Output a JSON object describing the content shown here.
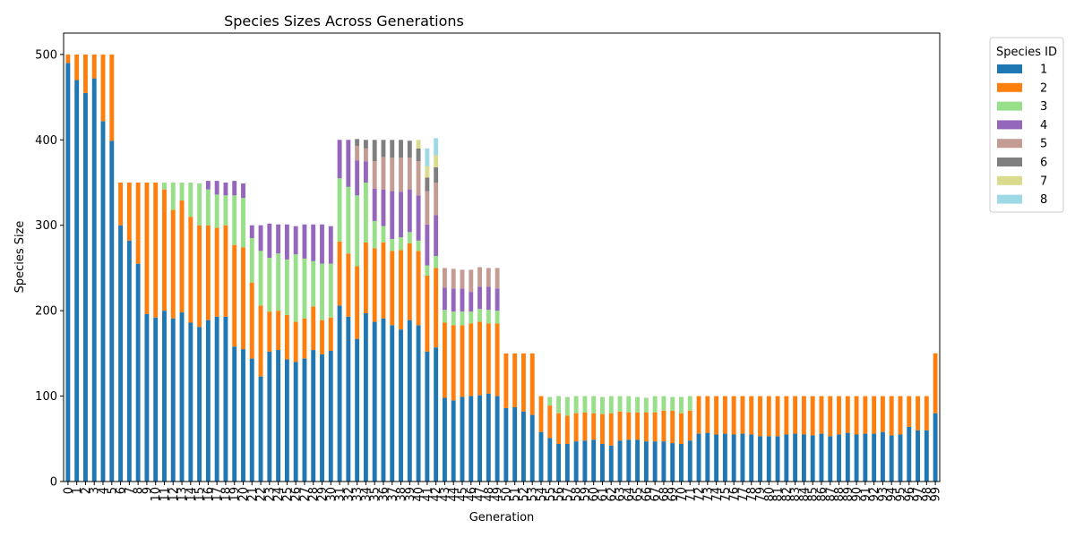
{
  "chart_data": {
    "type": "bar",
    "stacked": true,
    "title": "Species Sizes Across Generations",
    "xlabel": "Generation",
    "ylabel": "Species Size",
    "ylim": [
      0,
      525
    ],
    "yticks": [
      0,
      100,
      200,
      300,
      400,
      500
    ],
    "grid": false,
    "legend": {
      "title": "Species ID",
      "placement": "outside-top-right"
    },
    "categories": [
      "0",
      "1",
      "2",
      "3",
      "4",
      "5",
      "6",
      "7",
      "8",
      "9",
      "10",
      "11",
      "12",
      "13",
      "14",
      "15",
      "16",
      "17",
      "18",
      "19",
      "20",
      "21",
      "22",
      "23",
      "24",
      "25",
      "26",
      "27",
      "28",
      "29",
      "30",
      "31",
      "32",
      "33",
      "34",
      "35",
      "36",
      "37",
      "38",
      "39",
      "40",
      "41",
      "42",
      "43",
      "44",
      "45",
      "46",
      "47",
      "48",
      "49",
      "50",
      "51",
      "52",
      "53",
      "54",
      "55",
      "56",
      "57",
      "58",
      "59",
      "60",
      "61",
      "62",
      "63",
      "64",
      "65",
      "66",
      "67",
      "68",
      "69",
      "70",
      "71",
      "72",
      "73",
      "74",
      "75",
      "76",
      "77",
      "78",
      "79",
      "80",
      "81",
      "82",
      "83",
      "84",
      "85",
      "86",
      "87",
      "88",
      "89",
      "90",
      "91",
      "92",
      "93",
      "94",
      "95",
      "96",
      "97",
      "98",
      "99"
    ],
    "series": [
      {
        "name": "1",
        "color": "#1f77b4",
        "values": [
          490,
          470,
          455,
          472,
          422,
          399,
          300,
          282,
          255,
          196,
          192,
          200,
          191,
          198,
          186,
          181,
          189,
          193,
          193,
          158,
          155,
          144,
          123,
          152,
          154,
          143,
          140,
          144,
          154,
          149,
          153,
          206,
          193,
          167,
          197,
          187,
          191,
          183,
          178,
          189,
          183,
          152,
          157,
          98,
          95,
          99,
          100,
          101,
          103,
          100,
          86,
          87,
          82,
          78,
          58,
          51,
          44,
          44,
          47,
          48,
          49,
          44,
          42,
          48,
          49,
          49,
          47,
          47,
          47,
          45,
          44,
          48,
          56,
          57,
          55,
          56,
          55,
          56,
          55,
          53,
          53,
          53,
          55,
          56,
          55,
          54,
          56,
          53,
          55,
          57,
          55,
          56,
          56,
          58,
          54,
          55,
          64,
          60,
          60,
          80
        ]
      },
      {
        "name": "2",
        "color": "#ff7f0e",
        "values": [
          10,
          30,
          45,
          28,
          78,
          101,
          50,
          68,
          95,
          154,
          158,
          142,
          127,
          131,
          124,
          119,
          111,
          104,
          107,
          119,
          119,
          89,
          83,
          47,
          46,
          52,
          47,
          47,
          51,
          40,
          39,
          75,
          74,
          85,
          83,
          86,
          89,
          87,
          93,
          90,
          87,
          89,
          93,
          88,
          88,
          84,
          85,
          86,
          82,
          85,
          64,
          63,
          68,
          72,
          42,
          38,
          36,
          33,
          33,
          33,
          31,
          35,
          38,
          34,
          32,
          32,
          34,
          34,
          36,
          38,
          36,
          35,
          44,
          43,
          45,
          44,
          45,
          44,
          45,
          47,
          47,
          47,
          45,
          44,
          45,
          46,
          44,
          47,
          45,
          43,
          45,
          44,
          44,
          42,
          46,
          45,
          36,
          40,
          40,
          70
        ]
      },
      {
        "name": "3",
        "color": "#98df8a",
        "values": [
          0,
          0,
          0,
          0,
          0,
          0,
          0,
          0,
          0,
          0,
          0,
          8,
          32,
          21,
          40,
          49,
          42,
          39,
          35,
          58,
          58,
          52,
          64,
          63,
          67,
          65,
          79,
          70,
          53,
          66,
          63,
          74,
          78,
          83,
          70,
          32,
          19,
          14,
          15,
          13,
          12,
          12,
          14,
          15,
          16,
          16,
          14,
          15,
          16,
          15,
          0,
          0,
          0,
          0,
          0,
          10,
          20,
          22,
          20,
          19,
          20,
          20,
          20,
          18,
          19,
          18,
          17,
          19,
          17,
          16,
          19,
          17,
          0,
          0,
          0,
          0,
          0,
          0,
          0,
          0,
          0,
          0,
          0,
          0,
          0,
          0,
          0,
          0,
          0,
          0,
          0,
          0,
          0,
          0,
          0,
          0,
          0,
          0,
          0,
          0
        ]
      },
      {
        "name": "4",
        "color": "#9467bd",
        "values": [
          0,
          0,
          0,
          0,
          0,
          0,
          0,
          0,
          0,
          0,
          0,
          0,
          0,
          0,
          0,
          0,
          10,
          16,
          15,
          17,
          17,
          15,
          30,
          40,
          34,
          41,
          33,
          40,
          43,
          46,
          44,
          45,
          55,
          41,
          25,
          38,
          43,
          56,
          53,
          50,
          53,
          48,
          48,
          26,
          27,
          27,
          23,
          26,
          27,
          26,
          0,
          0,
          0,
          0,
          0,
          0,
          0,
          0,
          0,
          0,
          0,
          0,
          0,
          0,
          0,
          0,
          0,
          0,
          0,
          0,
          0,
          0,
          0,
          0,
          0,
          0,
          0,
          0,
          0,
          0,
          0,
          0,
          0,
          0,
          0,
          0,
          0,
          0,
          0,
          0,
          0,
          0,
          0,
          0,
          0,
          0,
          0,
          0,
          0,
          0
        ]
      },
      {
        "name": "5",
        "color": "#c49c94",
        "values": [
          0,
          0,
          0,
          0,
          0,
          0,
          0,
          0,
          0,
          0,
          0,
          0,
          0,
          0,
          0,
          0,
          0,
          0,
          0,
          0,
          0,
          0,
          0,
          0,
          0,
          0,
          0,
          0,
          0,
          0,
          0,
          0,
          0,
          17,
          15,
          32,
          38,
          39,
          40,
          37,
          40,
          39,
          38,
          23,
          23,
          22,
          26,
          23,
          22,
          24,
          0,
          0,
          0,
          0,
          0,
          0,
          0,
          0,
          0,
          0,
          0,
          0,
          0,
          0,
          0,
          0,
          0,
          0,
          0,
          0,
          0,
          0,
          0,
          0,
          0,
          0,
          0,
          0,
          0,
          0,
          0,
          0,
          0,
          0,
          0,
          0,
          0,
          0,
          0,
          0,
          0,
          0,
          0,
          0,
          0,
          0,
          0,
          0,
          0,
          0
        ]
      },
      {
        "name": "6",
        "color": "#7f7f7f",
        "values": [
          0,
          0,
          0,
          0,
          0,
          0,
          0,
          0,
          0,
          0,
          0,
          0,
          0,
          0,
          0,
          0,
          0,
          0,
          0,
          0,
          0,
          0,
          0,
          0,
          0,
          0,
          0,
          0,
          0,
          0,
          0,
          0,
          0,
          8,
          10,
          25,
          20,
          21,
          21,
          20,
          15,
          16,
          18,
          0,
          0,
          0,
          0,
          0,
          0,
          0,
          0,
          0,
          0,
          0,
          0,
          0,
          0,
          0,
          0,
          0,
          0,
          0,
          0,
          0,
          0,
          0,
          0,
          0,
          0,
          0,
          0,
          0,
          0,
          0,
          0,
          0,
          0,
          0,
          0,
          0,
          0,
          0,
          0,
          0,
          0,
          0,
          0,
          0,
          0,
          0,
          0,
          0,
          0,
          0,
          0,
          0,
          0,
          0,
          0,
          0
        ]
      },
      {
        "name": "7",
        "color": "#dbdb8d",
        "values": [
          0,
          0,
          0,
          0,
          0,
          0,
          0,
          0,
          0,
          0,
          0,
          0,
          0,
          0,
          0,
          0,
          0,
          0,
          0,
          0,
          0,
          0,
          0,
          0,
          0,
          0,
          0,
          0,
          0,
          0,
          0,
          0,
          0,
          0,
          0,
          0,
          0,
          0,
          0,
          0,
          10,
          13,
          14,
          0,
          0,
          0,
          0,
          0,
          0,
          0,
          0,
          0,
          0,
          0,
          0,
          0,
          0,
          0,
          0,
          0,
          0,
          0,
          0,
          0,
          0,
          0,
          0,
          0,
          0,
          0,
          0,
          0,
          0,
          0,
          0,
          0,
          0,
          0,
          0,
          0,
          0,
          0,
          0,
          0,
          0,
          0,
          0,
          0,
          0,
          0,
          0,
          0,
          0,
          0,
          0,
          0,
          0,
          0,
          0,
          0
        ]
      },
      {
        "name": "8",
        "color": "#9edae5",
        "values": [
          0,
          0,
          0,
          0,
          0,
          0,
          0,
          0,
          0,
          0,
          0,
          0,
          0,
          0,
          0,
          0,
          0,
          0,
          0,
          0,
          0,
          0,
          0,
          0,
          0,
          0,
          0,
          0,
          0,
          0,
          0,
          0,
          0,
          0,
          0,
          0,
          0,
          0,
          0,
          0,
          0,
          21,
          20,
          0,
          0,
          0,
          0,
          0,
          0,
          0,
          0,
          0,
          0,
          0,
          0,
          0,
          0,
          0,
          0,
          0,
          0,
          0,
          0,
          0,
          0,
          0,
          0,
          0,
          0,
          0,
          0,
          0,
          0,
          0,
          0,
          0,
          0,
          0,
          0,
          0,
          0,
          0,
          0,
          0,
          0,
          0,
          0,
          0,
          0,
          0,
          0,
          0,
          0,
          0,
          0,
          0,
          0,
          0,
          0,
          0
        ]
      }
    ]
  }
}
